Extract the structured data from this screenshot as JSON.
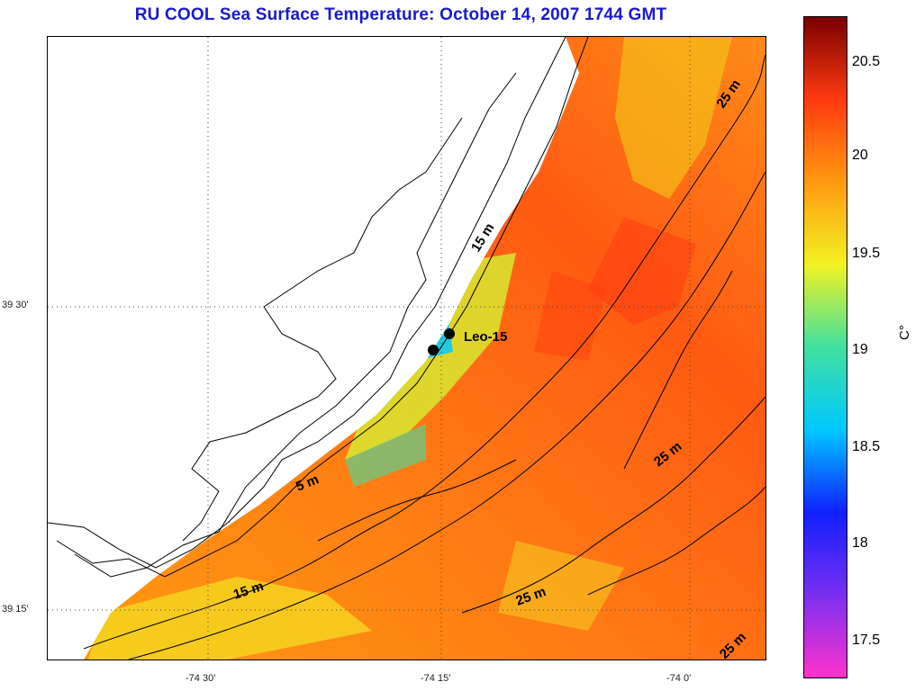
{
  "title": "RU COOL  Sea Surface Temperature:  October 14, 2007 1744 GMT",
  "axes": {
    "y_labels": [
      "39 30'",
      "39 15'"
    ],
    "x_labels": [
      "-74 30'",
      "-74 15'",
      "-74 0'"
    ]
  },
  "map_labels": {
    "station": "Leo-15",
    "contours": [
      "25 m",
      "15 m",
      "5 m",
      "15 m",
      "25 m",
      "25 m",
      "25 m"
    ]
  },
  "colorbar": {
    "labels": [
      "20.5",
      "20",
      "19.5",
      "19",
      "18.5",
      "18",
      "17.5"
    ],
    "unit": "C°",
    "colors": [
      "#ff33cc",
      "#7a2ff0",
      "#1020ff",
      "#00c8ff",
      "#40e0a0",
      "#f2f222",
      "#ff9a10",
      "#ff3a10",
      "#7a0000"
    ]
  }
}
